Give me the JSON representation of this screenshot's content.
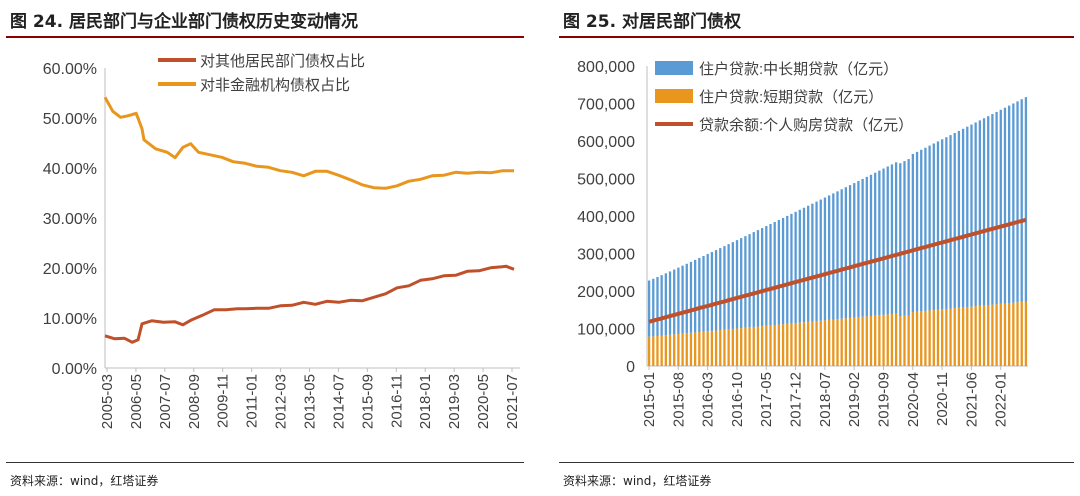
{
  "left": {
    "title": "图 24. 居民部门与企业部门债权历史变动情况",
    "source": "资料来源：wind，红塔证券",
    "chart_data": {
      "type": "line",
      "title": "图 24. 居民部门与企业部门债权历史变动情况",
      "xlabel": "",
      "ylabel": "",
      "ylim": [
        0,
        60
      ],
      "yticks": [
        "0.00%",
        "10.00%",
        "20.00%",
        "30.00%",
        "40.00%",
        "50.00%",
        "60.00%"
      ],
      "xticks": [
        "2005-03",
        "2006-05",
        "2007-07",
        "2008-09",
        "2009-11",
        "2011-01",
        "2012-03",
        "2013-05",
        "2014-07",
        "2015-09",
        "2016-11",
        "2018-01",
        "2019-03",
        "2020-05",
        "2021-07"
      ],
      "legend_position": "top-center",
      "series": [
        {
          "name": "对其他居民部门债权占比",
          "color": "#c0502a",
          "points": [
            [
              0,
              6.3
            ],
            [
              5,
              6.0
            ],
            [
              10,
              5.8
            ],
            [
              14,
              5.3
            ],
            [
              17,
              5.5
            ],
            [
              19,
              9.0
            ],
            [
              24,
              9.3
            ],
            [
              30,
              9.3
            ],
            [
              36,
              9.1
            ],
            [
              40,
              8.8
            ],
            [
              44,
              9.4
            ],
            [
              50,
              10.7
            ],
            [
              56,
              11.5
            ],
            [
              62,
              11.8
            ],
            [
              68,
              11.7
            ],
            [
              72,
              12.0
            ],
            [
              78,
              11.8
            ],
            [
              84,
              12.1
            ],
            [
              90,
              12.3
            ],
            [
              96,
              12.7
            ],
            [
              102,
              13.0
            ],
            [
              108,
              12.9
            ],
            [
              114,
              13.2
            ],
            [
              120,
              13.3
            ],
            [
              126,
              13.4
            ],
            [
              132,
              13.6
            ],
            [
              138,
              14.0
            ],
            [
              144,
              15.0
            ],
            [
              150,
              15.9
            ],
            [
              156,
              16.6
            ],
            [
              162,
              17.4
            ],
            [
              168,
              18.0
            ],
            [
              174,
              18.3
            ],
            [
              180,
              18.7
            ],
            [
              186,
              19.2
            ],
            [
              192,
              19.6
            ],
            [
              198,
              19.9
            ],
            [
              204,
              20.4
            ],
            [
              206,
              20.2
            ],
            [
              210,
              19.9
            ]
          ]
        },
        {
          "name": "对非金融机构债权占比",
          "color": "#e8961e",
          "points": [
            [
              0,
              54.0
            ],
            [
              4,
              51.5
            ],
            [
              8,
              50.0
            ],
            [
              12,
              50.6
            ],
            [
              16,
              50.8
            ],
            [
              19,
              48.0
            ],
            [
              20,
              45.5
            ],
            [
              26,
              44.0
            ],
            [
              32,
              43.0
            ],
            [
              36,
              42.2
            ],
            [
              40,
              44.0
            ],
            [
              44,
              45.0
            ],
            [
              48,
              43.0
            ],
            [
              54,
              42.8
            ],
            [
              60,
              42.0
            ],
            [
              66,
              41.4
            ],
            [
              72,
              40.8
            ],
            [
              78,
              40.5
            ],
            [
              84,
              40.0
            ],
            [
              90,
              39.6
            ],
            [
              96,
              39.0
            ],
            [
              102,
              38.6
            ],
            [
              108,
              39.2
            ],
            [
              114,
              39.5
            ],
            [
              120,
              38.4
            ],
            [
              126,
              37.8
            ],
            [
              132,
              36.5
            ],
            [
              138,
              36.2
            ],
            [
              144,
              35.8
            ],
            [
              150,
              36.6
            ],
            [
              156,
              37.2
            ],
            [
              162,
              37.9
            ],
            [
              168,
              38.3
            ],
            [
              174,
              38.7
            ],
            [
              180,
              39.0
            ],
            [
              186,
              39.1
            ],
            [
              192,
              39.0
            ],
            [
              198,
              39.2
            ],
            [
              204,
              39.3
            ],
            [
              210,
              39.6
            ]
          ]
        }
      ]
    }
  },
  "right": {
    "title": "图 25. 对居民部门债权",
    "source": "资料来源：wind，红塔证券",
    "chart_data": {
      "type": "bar",
      "title": "图 25. 对居民部门债权",
      "xlabel": "",
      "ylabel": "",
      "ylim": [
        0,
        800000
      ],
      "yticks": [
        "0",
        "100,000",
        "200,000",
        "300,000",
        "400,000",
        "500,000",
        "600,000",
        "700,000",
        "800,000"
      ],
      "xticks": [
        "2015-01",
        "2015-08",
        "2016-03",
        "2016-10",
        "2017-05",
        "2017-12",
        "2018-07",
        "2019-02",
        "2019-09",
        "2020-04",
        "2020-11",
        "2021-06",
        "2022-01"
      ],
      "legend_position": "top-left",
      "series": [
        {
          "name": "住户贷款:中长期贷款（亿元）",
          "color": "#5b9bd5",
          "kind": "bar",
          "start": 150000,
          "end": 545000
        },
        {
          "name": "住户贷款:短期贷款（亿元）",
          "color": "#e8961e",
          "kind": "bar",
          "start": 78000,
          "end": 172000
        },
        {
          "name": "贷款余额:个人购房贷款（亿元）",
          "color": "#c0502a",
          "kind": "line",
          "start": 118000,
          "end": 390000
        }
      ],
      "months": 91
    }
  }
}
